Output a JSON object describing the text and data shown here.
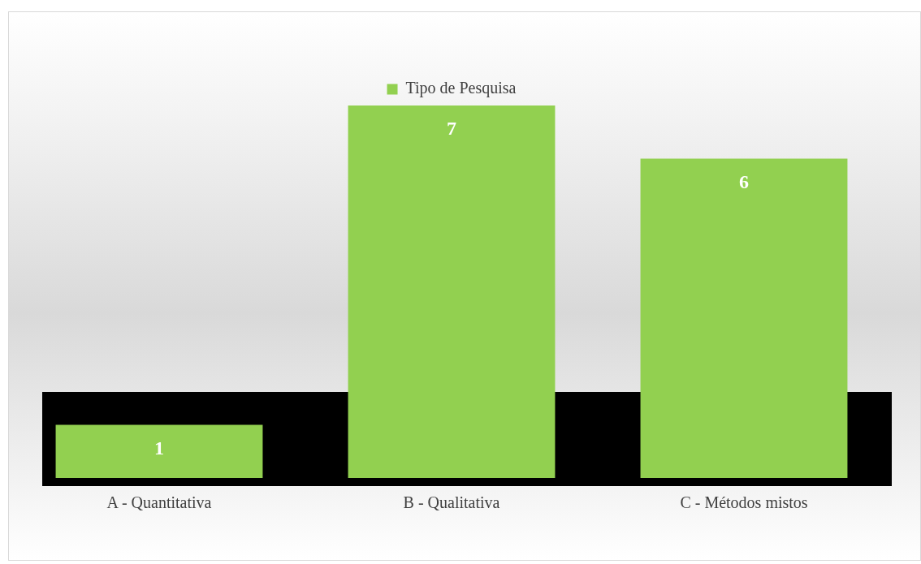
{
  "chart_data": {
    "type": "bar",
    "categories": [
      "A - Quantitativa",
      "B - Qualitativa",
      "C - Métodos mistos"
    ],
    "series": [
      {
        "name": "Tipo de Pesquisa",
        "color": "#92d050",
        "values": [
          1,
          7,
          6
        ]
      }
    ],
    "legend": "top",
    "data_labels": true
  }
}
